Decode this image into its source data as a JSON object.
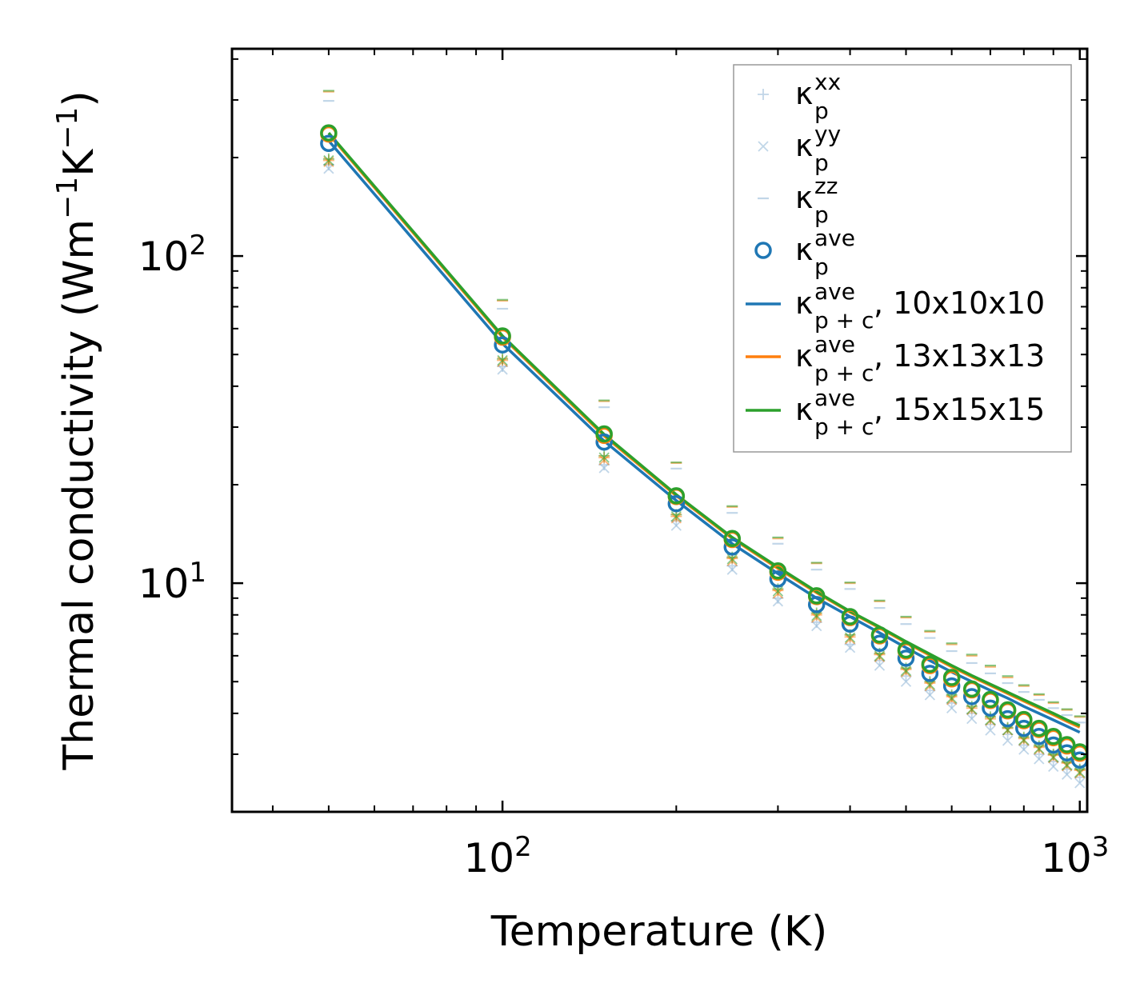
{
  "chart_data": {
    "type": "scatter",
    "title": "",
    "xlabel": "Temperature (K)",
    "ylabel_main": "Thermal conductivity (Wm",
    "ylabel_exp1": "−1",
    "ylabel_mid": "K",
    "ylabel_exp2": "−1",
    "ylabel_end": ")",
    "xscale": "log",
    "yscale": "log",
    "xlim": [
      34,
      1030
    ],
    "ylim": [
      2.0,
      430
    ],
    "x_tick_labels": [
      {
        "value": 100,
        "base": "10",
        "exp": "2"
      },
      {
        "value": 1000,
        "base": "10",
        "exp": "3"
      }
    ],
    "y_tick_labels": [
      {
        "value": 10,
        "base": "10",
        "exp": "1"
      },
      {
        "value": 100,
        "base": "10",
        "exp": "2"
      }
    ],
    "legend_position": "top-right",
    "x": [
      50,
      100,
      150,
      200,
      250,
      300,
      350,
      400,
      450,
      500,
      550,
      600,
      650,
      700,
      750,
      800,
      850,
      900,
      950,
      1000
    ],
    "scatter_series": [
      {
        "name": "kappa_p_xx",
        "marker": "plus",
        "set": "10x10x10",
        "values": [
          190,
          46,
          23,
          15.5,
          11.3,
          9.0,
          7.6,
          6.5,
          5.8,
          5.2,
          4.7,
          4.3,
          4.0,
          3.7,
          3.45,
          3.2,
          3.0,
          2.85,
          2.7,
          2.55
        ]
      },
      {
        "name": "kappa_p_yy",
        "marker": "x",
        "set": "10x10x10",
        "values": [
          185,
          45,
          22.5,
          15.0,
          11.0,
          8.8,
          7.4,
          6.35,
          5.6,
          5.0,
          4.55,
          4.15,
          3.85,
          3.55,
          3.3,
          3.1,
          2.9,
          2.75,
          2.6,
          2.45
        ]
      },
      {
        "name": "kappa_p_zz",
        "marker": "dash",
        "set": "10x10x10",
        "values": [
          298,
          69,
          34.5,
          22.4,
          16.4,
          13.2,
          11.0,
          9.6,
          8.4,
          7.5,
          6.8,
          6.2,
          5.7,
          5.3,
          4.95,
          4.65,
          4.4,
          4.15,
          3.95,
          3.75
        ]
      },
      {
        "name": "kappa_p_ave",
        "marker": "circle",
        "set": "10x10x10",
        "values": [
          221,
          53.5,
          27,
          17.5,
          12.9,
          10.3,
          8.6,
          7.5,
          6.55,
          5.9,
          5.3,
          4.85,
          4.5,
          4.15,
          3.85,
          3.6,
          3.4,
          3.2,
          3.03,
          2.88
        ]
      },
      {
        "name": "kappa_p_xx",
        "marker": "plus",
        "set": "13x13x13",
        "values": [
          196,
          48,
          24.2,
          16.0,
          11.9,
          9.5,
          8.0,
          6.85,
          6.05,
          5.45,
          4.95,
          4.5,
          4.15,
          3.85,
          3.6,
          3.35,
          3.15,
          2.98,
          2.82,
          2.68
        ]
      },
      {
        "name": "kappa_p_yy",
        "marker": "x",
        "set": "13x13x13",
        "values": [
          194,
          47.5,
          23.8,
          15.8,
          11.7,
          9.3,
          7.85,
          6.75,
          5.95,
          5.35,
          4.85,
          4.4,
          4.1,
          3.8,
          3.55,
          3.3,
          3.1,
          2.92,
          2.76,
          2.62
        ]
      },
      {
        "name": "kappa_p_zz",
        "marker": "dash",
        "set": "13x13x13",
        "values": [
          318,
          73,
          36,
          23.3,
          17.1,
          13.7,
          11.5,
          10.0,
          8.8,
          7.85,
          7.1,
          6.5,
          6.0,
          5.55,
          5.15,
          4.85,
          4.55,
          4.3,
          4.1,
          3.9
        ]
      },
      {
        "name": "kappa_p_ave",
        "marker": "circle",
        "set": "13x13x13",
        "values": [
          236,
          56.5,
          28.3,
          18.4,
          13.6,
          10.8,
          9.1,
          7.85,
          6.9,
          6.2,
          5.6,
          5.1,
          4.72,
          4.38,
          4.07,
          3.8,
          3.57,
          3.37,
          3.18,
          3.02
        ]
      },
      {
        "name": "kappa_p_xx",
        "marker": "plus",
        "set": "15x15x15",
        "values": [
          198,
          48.5,
          24.5,
          16.2,
          12.0,
          9.6,
          8.1,
          6.95,
          6.1,
          5.5,
          5.0,
          4.55,
          4.2,
          3.9,
          3.62,
          3.38,
          3.18,
          3.0,
          2.84,
          2.7
        ]
      },
      {
        "name": "kappa_p_yy",
        "marker": "x",
        "set": "15x15x15",
        "values": [
          196,
          48,
          24.2,
          16.0,
          11.85,
          9.45,
          7.95,
          6.82,
          6.0,
          5.4,
          4.9,
          4.45,
          4.12,
          3.82,
          3.56,
          3.32,
          3.12,
          2.94,
          2.78,
          2.64
        ]
      },
      {
        "name": "kappa_p_zz",
        "marker": "dash",
        "set": "15x15x15",
        "values": [
          320,
          73.5,
          36.2,
          23.4,
          17.2,
          13.8,
          11.55,
          10.05,
          8.85,
          7.9,
          7.15,
          6.55,
          6.05,
          5.6,
          5.2,
          4.88,
          4.58,
          4.33,
          4.12,
          3.92
        ]
      },
      {
        "name": "kappa_p_ave",
        "marker": "circle",
        "set": "15x15x15",
        "values": [
          238,
          57,
          28.6,
          18.5,
          13.7,
          10.9,
          9.15,
          7.9,
          6.95,
          6.25,
          5.65,
          5.15,
          4.75,
          4.41,
          4.1,
          3.83,
          3.6,
          3.4,
          3.21,
          3.05
        ]
      }
    ],
    "line_series": [
      {
        "name": "kappa_p+c_ave, 10x10x10",
        "set": "10x10x10",
        "values": [
          225,
          54,
          27.2,
          17.9,
          13.2,
          10.7,
          9.0,
          7.9,
          7.05,
          6.35,
          5.8,
          5.35,
          5.0,
          4.7,
          4.45,
          4.2,
          4.0,
          3.82,
          3.65,
          3.5
        ]
      },
      {
        "name": "kappa_p+c_ave, 13x13x13",
        "set": "13x13x13",
        "values": [
          236,
          56.5,
          28.2,
          18.5,
          13.7,
          11.1,
          9.35,
          8.15,
          7.3,
          6.58,
          6.02,
          5.55,
          5.18,
          4.87,
          4.6,
          4.36,
          4.15,
          3.96,
          3.78,
          3.63
        ]
      },
      {
        "name": "kappa_p+c_ave, 15x15x15",
        "set": "15x15x15",
        "values": [
          238,
          57,
          28.5,
          18.65,
          13.8,
          11.2,
          9.42,
          8.2,
          7.35,
          6.63,
          6.07,
          5.6,
          5.22,
          4.91,
          4.64,
          4.4,
          4.19,
          4.0,
          3.82,
          3.67
        ]
      }
    ],
    "legend": [
      {
        "marker": "plus",
        "label_main": "κ",
        "sup": "xx",
        "sub": "p",
        "suffix": "",
        "color": "#8fb6d6"
      },
      {
        "marker": "x",
        "label_main": "κ",
        "sup": "yy",
        "sub": "p",
        "suffix": "",
        "color": "#8fb6d6"
      },
      {
        "marker": "dash",
        "label_main": "κ",
        "sup": "zz",
        "sub": "p",
        "suffix": "",
        "color": "#8fb6d6"
      },
      {
        "marker": "circle",
        "label_main": "κ",
        "sup": "ave",
        "sub": "p",
        "suffix": "",
        "color": "#1f77b4"
      },
      {
        "marker": "line",
        "label_main": "κ",
        "sup": "ave",
        "sub": "p + c",
        "suffix": ", 10x10x10",
        "color": "#1f77b4"
      },
      {
        "marker": "line",
        "label_main": "κ",
        "sup": "ave",
        "sub": "p + c",
        "suffix": ", 13x13x13",
        "color": "#ff7f0e"
      },
      {
        "marker": "line",
        "label_main": "κ",
        "sup": "ave",
        "sub": "p + c",
        "suffix": ", 15x15x15",
        "color": "#2ca02c"
      }
    ],
    "colors": {
      "10x10x10": "#1f77b4",
      "13x13x13": "#ff7f0e",
      "15x15x15": "#2ca02c",
      "marker_light": "#8fb6d6"
    }
  }
}
